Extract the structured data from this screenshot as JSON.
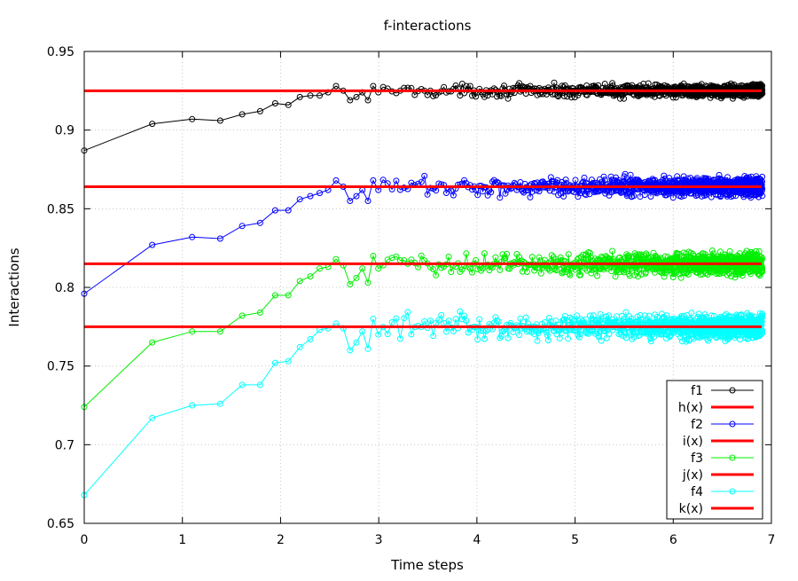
{
  "chart_data": {
    "type": "line",
    "title": "f-interactions",
    "xlabel": "Time steps",
    "ylabel": "Interactions",
    "xlim": [
      0,
      7
    ],
    "ylim": [
      0.65,
      0.95
    ],
    "x_ticks": [
      "0",
      "1",
      "2",
      "3",
      "4",
      "5",
      "6",
      "7"
    ],
    "y_ticks": [
      "0.65",
      "0.7",
      "0.75",
      "0.8",
      "0.85",
      "0.9",
      "0.95"
    ],
    "grid": true,
    "legend_position": "bottom-right",
    "x": [
      0,
      0.693,
      1.099,
      1.386,
      1.609,
      1.792,
      1.946,
      2.079,
      2.197,
      2.303,
      2.398,
      2.485,
      2.565,
      2.639,
      2.708,
      2.773,
      2.833,
      2.89,
      2.944,
      2.996
    ],
    "series": [
      {
        "name": "f1",
        "color": "#000000",
        "marker": "circle",
        "start": 0.887,
        "values": [
          0.887,
          0.904,
          0.907,
          0.906,
          0.91,
          0.912,
          0.917,
          0.916,
          0.921,
          0.922,
          0.922,
          0.924,
          0.928,
          0.925,
          0.919,
          0.921,
          0.924,
          0.919,
          0.928,
          0.924
        ],
        "noisy_tail_from": 3.0,
        "tail_mean": 0.925,
        "tail_amplitude": 0.0035
      },
      {
        "name": "h(x)",
        "color": "#ff0000",
        "type": "constant",
        "value": 0.925
      },
      {
        "name": "f2",
        "color": "#0000ff",
        "marker": "circle",
        "start": 0.796,
        "values": [
          0.796,
          0.827,
          0.832,
          0.831,
          0.839,
          0.841,
          0.849,
          0.849,
          0.856,
          0.858,
          0.86,
          0.862,
          0.868,
          0.864,
          0.855,
          0.858,
          0.862,
          0.855,
          0.868,
          0.862
        ],
        "noisy_tail_from": 3.0,
        "tail_mean": 0.864,
        "tail_amplitude": 0.0055
      },
      {
        "name": "i(x)",
        "color": "#ff0000",
        "type": "constant",
        "value": 0.864
      },
      {
        "name": "f3",
        "color": "#00ee00",
        "marker": "circle",
        "start": 0.724,
        "values": [
          0.724,
          0.765,
          0.772,
          0.772,
          0.782,
          0.784,
          0.795,
          0.795,
          0.804,
          0.807,
          0.812,
          0.813,
          0.818,
          0.814,
          0.802,
          0.806,
          0.812,
          0.803,
          0.82,
          0.812
        ],
        "noisy_tail_from": 3.0,
        "tail_mean": 0.815,
        "tail_amplitude": 0.0065
      },
      {
        "name": "j(x)",
        "color": "#ff0000",
        "type": "constant",
        "value": 0.815
      },
      {
        "name": "f4",
        "color": "#00ffff",
        "marker": "circle",
        "start": 0.668,
        "values": [
          0.668,
          0.717,
          0.725,
          0.726,
          0.738,
          0.738,
          0.752,
          0.753,
          0.762,
          0.767,
          0.773,
          0.774,
          0.777,
          0.774,
          0.76,
          0.765,
          0.772,
          0.761,
          0.78,
          0.77
        ],
        "noisy_tail_from": 3.0,
        "tail_mean": 0.775,
        "tail_amplitude": 0.007
      },
      {
        "name": "k(x)",
        "color": "#ff0000",
        "type": "constant",
        "value": 0.775
      }
    ]
  }
}
